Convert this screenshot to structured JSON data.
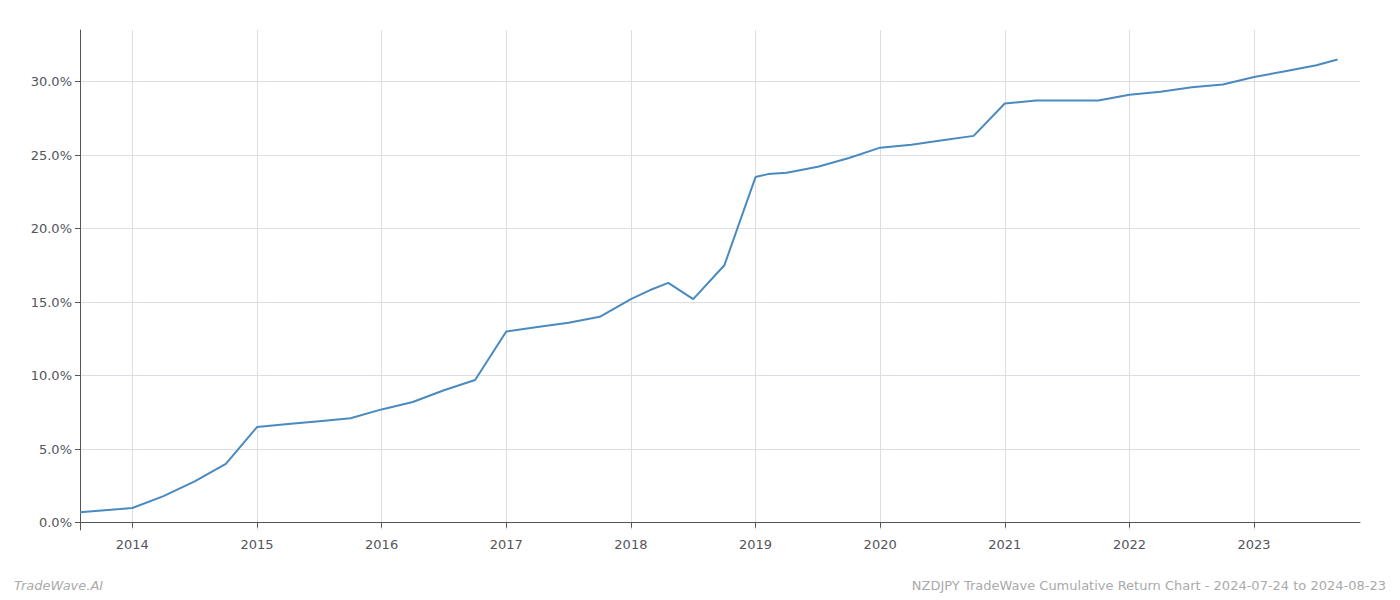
{
  "chart_data": {
    "type": "line",
    "x": [
      2013.58,
      2014.0,
      2014.25,
      2014.5,
      2014.75,
      2015.0,
      2015.25,
      2015.5,
      2015.75,
      2016.0,
      2016.25,
      2016.5,
      2016.75,
      2017.0,
      2017.25,
      2017.5,
      2017.75,
      2018.0,
      2018.15,
      2018.3,
      2018.5,
      2018.75,
      2019.0,
      2019.1,
      2019.25,
      2019.5,
      2019.75,
      2020.0,
      2020.25,
      2020.5,
      2020.75,
      2021.0,
      2021.25,
      2021.5,
      2021.75,
      2022.0,
      2022.25,
      2022.5,
      2022.75,
      2023.0,
      2023.25,
      2023.5,
      2023.67
    ],
    "values": [
      0.007,
      0.01,
      0.018,
      0.028,
      0.04,
      0.065,
      0.067,
      0.069,
      0.071,
      0.077,
      0.082,
      0.09,
      0.097,
      0.13,
      0.133,
      0.136,
      0.14,
      0.152,
      0.158,
      0.163,
      0.152,
      0.175,
      0.235,
      0.237,
      0.238,
      0.242,
      0.248,
      0.255,
      0.257,
      0.26,
      0.263,
      0.285,
      0.287,
      0.287,
      0.287,
      0.291,
      0.293,
      0.296,
      0.298,
      0.303,
      0.307,
      0.311,
      0.315
    ],
    "color": "#4a8abf",
    "xlim": [
      2013.58,
      2023.85
    ],
    "xticks": [
      2014,
      2015,
      2016,
      2017,
      2018,
      2019,
      2020,
      2021,
      2022,
      2023
    ],
    "ylim": [
      -0.005,
      0.335
    ],
    "yticks": [
      {
        "value": 0.0,
        "label": "0.0%"
      },
      {
        "value": 0.05,
        "label": "5.0%"
      },
      {
        "value": 0.1,
        "label": "10.0%"
      },
      {
        "value": 0.15,
        "label": "15.0%"
      },
      {
        "value": 0.2,
        "label": "20.0%"
      },
      {
        "value": 0.25,
        "label": "25.0%"
      },
      {
        "value": 0.3,
        "label": "30.0%"
      }
    ],
    "grid": true,
    "annotations": [
      "TradeWave.AI",
      "NZDJPY TradeWave Cumulative Return Chart - 2024-07-24 to 2024-08-23"
    ]
  }
}
